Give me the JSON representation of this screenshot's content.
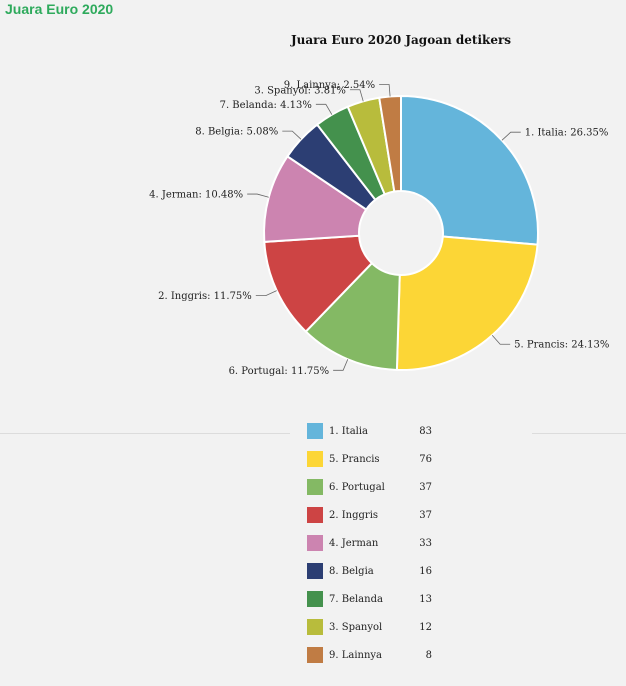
{
  "page_heading": "Juara Euro 2020",
  "chart_data": {
    "type": "pie",
    "variant": "donut",
    "title": "Juara Euro 2020 Jagoan detikers",
    "slices": [
      {
        "label": "1. Italia",
        "value": 83,
        "percent_label": "1. Italia: 26.35%",
        "color": "#64b5db"
      },
      {
        "label": "5. Prancis",
        "value": 76,
        "percent_label": "5. Prancis: 24.13%",
        "color": "#fcd636"
      },
      {
        "label": "6. Portugal",
        "value": 37,
        "percent_label": "6. Portugal: 11.75%",
        "color": "#84b964"
      },
      {
        "label": "2. Inggris",
        "value": 37,
        "percent_label": "2. Inggris: 11.75%",
        "color": "#cd4444"
      },
      {
        "label": "4. Jerman",
        "value": 33,
        "percent_label": "4. Jerman: 10.48%",
        "color": "#cc84b0"
      },
      {
        "label": "8. Belgia",
        "value": 16,
        "percent_label": "8. Belgia: 5.08%",
        "color": "#2c3e73"
      },
      {
        "label": "7. Belanda",
        "value": 13,
        "percent_label": "7. Belanda: 4.13%",
        "color": "#44914d"
      },
      {
        "label": "3. Spanyol",
        "value": 12,
        "percent_label": "3. Spanyol: 3.81%",
        "color": "#b8bc3c"
      },
      {
        "label": "9. Lainnya",
        "value": 8,
        "percent_label": "9. Lainnya: 2.54%",
        "color": "#c07c44"
      }
    ],
    "legend_position": "bottom"
  }
}
